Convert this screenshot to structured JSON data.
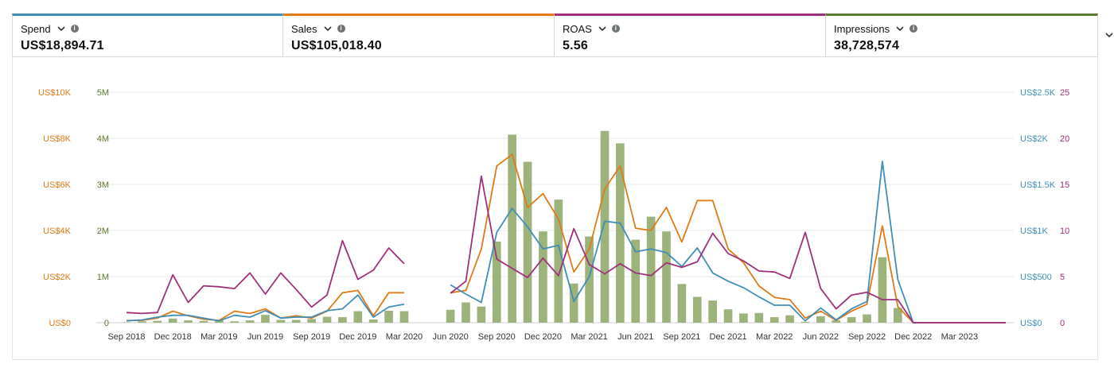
{
  "metrics": [
    {
      "label": "Spend",
      "value": "US$18,894.71",
      "color": "#3f8fb8"
    },
    {
      "label": "Sales",
      "value": "US$105,018.40",
      "color": "#e07b17"
    },
    {
      "label": "ROAS",
      "value": "5.56",
      "color": "#a1307c"
    },
    {
      "label": "Impressions",
      "value": "38,728,574",
      "color": "#5c7a2b"
    }
  ],
  "icons": {
    "dropdown": "chevron-down-icon",
    "info": "info-icon",
    "expand": "chevron-down-icon"
  },
  "chart_data": {
    "type": "bar+line",
    "x": [
      "Sep 2018",
      "Oct 2018",
      "Nov 2018",
      "Dec 2018",
      "Jan 2019",
      "Feb 2019",
      "Mar 2019",
      "Apr 2019",
      "May 2019",
      "Jun 2019",
      "Jul 2019",
      "Aug 2019",
      "Sep 2019",
      "Oct 2019",
      "Nov 2019",
      "Dec 2019",
      "Jan 2020",
      "Feb 2020",
      "Mar 2020",
      "Apr 2020",
      "May 2020",
      "Jun 2020",
      "Jul 2020",
      "Aug 2020",
      "Sep 2020",
      "Oct 2020",
      "Nov 2020",
      "Dec 2020",
      "Jan 2021",
      "Feb 2021",
      "Mar 2021",
      "Apr 2021",
      "May 2021",
      "Jun 2021",
      "Jul 2021",
      "Aug 2021",
      "Sep 2021",
      "Oct 2021",
      "Nov 2021",
      "Dec 2021",
      "Jan 2022",
      "Feb 2022",
      "Mar 2022",
      "Apr 2022",
      "May 2022",
      "Jun 2022",
      "Jul 2022",
      "Aug 2022",
      "Sep 2022",
      "Oct 2022",
      "Nov 2022",
      "Dec 2022",
      "Jan 2023",
      "Feb 2023",
      "Mar 2023",
      "Apr 2023",
      "May 2023",
      "Jun 2023"
    ],
    "x_tick_labels": [
      "Sep 2018",
      "Dec 2018",
      "Mar 2019",
      "Jun 2019",
      "Sep 2019",
      "Dec 2019",
      "Mar 2020",
      "Jun 2020",
      "Sep 2020",
      "Dec 2020",
      "Mar 2021",
      "Jun 2021",
      "Sep 2021",
      "Dec 2021",
      "Mar 2022",
      "Jun 2022",
      "Sep 2022",
      "Dec 2022",
      "Mar 2023"
    ],
    "axes": {
      "sales": {
        "ticks": [
          "US$0",
          "US$2K",
          "US$4K",
          "US$6K",
          "US$8K",
          "US$10K"
        ],
        "ylim": [
          0,
          10000
        ],
        "color": "#e07b17"
      },
      "impressions": {
        "ticks": [
          "0",
          "1M",
          "2M",
          "3M",
          "4M",
          "5M"
        ],
        "ylim": [
          0,
          5000000
        ],
        "color": "#5c7a2b"
      },
      "spend": {
        "ticks": [
          "US$0",
          "US$500",
          "US$1K",
          "US$1.5K",
          "US$2K",
          "US$2.5K"
        ],
        "ylim": [
          0,
          2500
        ],
        "color": "#3f8fb8"
      },
      "roas": {
        "ticks": [
          "0",
          "5",
          "10",
          "15",
          "20",
          "25"
        ],
        "ylim": [
          0,
          25
        ],
        "color": "#a1307c"
      }
    },
    "series": [
      {
        "type": "bar",
        "axis": "impressions",
        "color": "#9cb37a",
        "values": [
          10000,
          30000,
          40000,
          90000,
          50000,
          40000,
          50000,
          30000,
          50000,
          170000,
          60000,
          60000,
          80000,
          130000,
          120000,
          250000,
          70000,
          260000,
          250000,
          null,
          null,
          280000,
          440000,
          350000,
          1760000,
          4080000,
          3490000,
          1980000,
          2670000,
          850000,
          1870000,
          4160000,
          3890000,
          1800000,
          2300000,
          1980000,
          840000,
          560000,
          480000,
          290000,
          200000,
          210000,
          120000,
          160000,
          20000,
          140000,
          50000,
          120000,
          180000,
          1420000,
          320000,
          0,
          0,
          0,
          0,
          0,
          0,
          0
        ]
      },
      {
        "type": "line",
        "axis": "sales",
        "color": "#e07b17",
        "values": [
          100,
          100,
          200,
          500,
          300,
          150,
          100,
          500,
          400,
          600,
          200,
          300,
          200,
          500,
          1300,
          1400,
          300,
          1300,
          1300,
          null,
          null,
          1300,
          1400,
          3200,
          6800,
          7300,
          5000,
          5600,
          4500,
          2200,
          3200,
          5800,
          6800,
          4100,
          4000,
          5000,
          3500,
          5300,
          5300,
          3200,
          2600,
          1600,
          1100,
          1000,
          200,
          500,
          100,
          500,
          800,
          4200,
          700,
          0,
          0,
          0,
          0,
          0,
          0,
          0
        ]
      },
      {
        "type": "line",
        "axis": "spend",
        "color": "#3f8fb8",
        "values": [
          20,
          30,
          60,
          80,
          80,
          50,
          20,
          80,
          60,
          130,
          50,
          60,
          60,
          130,
          150,
          300,
          60,
          170,
          200,
          null,
          null,
          410,
          310,
          220,
          980,
          1240,
          1040,
          800,
          840,
          230,
          500,
          1100,
          1080,
          770,
          800,
          760,
          610,
          810,
          540,
          450,
          380,
          280,
          190,
          190,
          20,
          160,
          30,
          150,
          230,
          1750,
          470,
          0,
          0,
          0,
          0,
          0,
          0,
          0
        ]
      },
      {
        "type": "line",
        "axis": "roas",
        "color": "#a1307c",
        "values": [
          1.1,
          1,
          1.1,
          5.2,
          2.2,
          4,
          3.9,
          3.7,
          5.4,
          3.1,
          5.4,
          3.6,
          1.7,
          3,
          8.9,
          4.7,
          5.7,
          8.1,
          6.4,
          null,
          null,
          3.2,
          4.5,
          15.9,
          6.9,
          5.9,
          4.9,
          7,
          5.1,
          10.2,
          6.3,
          5.3,
          6.4,
          5.4,
          5.1,
          6.5,
          6,
          6.6,
          9.7,
          7.5,
          6.7,
          5.6,
          5.5,
          4.8,
          9.8,
          3.7,
          1.5,
          3,
          3.3,
          2.5,
          2.5,
          0,
          0,
          0,
          0,
          0,
          0,
          0
        ]
      }
    ]
  }
}
